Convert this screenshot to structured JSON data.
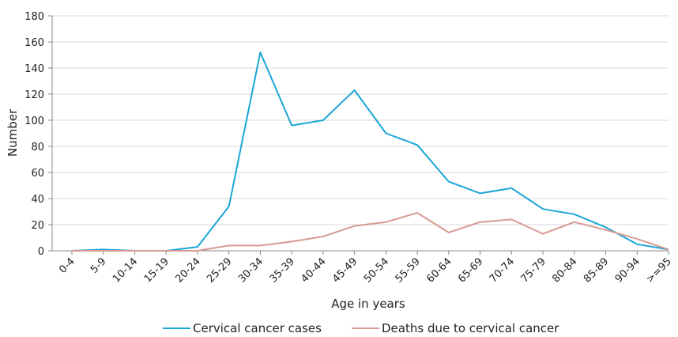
{
  "chart_data": {
    "type": "line",
    "xlabel": "Age in years",
    "ylabel": "Number",
    "ylim": [
      0,
      180
    ],
    "yticks": [
      0,
      20,
      40,
      60,
      80,
      100,
      120,
      140,
      160,
      180
    ],
    "grid": "horizontal",
    "legend_position": "bottom",
    "categories": [
      "0-4",
      "5-9",
      "10-14",
      "15-19",
      "20-24",
      "25-29",
      "30-34",
      "35-39",
      "40-44",
      "45-49",
      "50-54",
      "55-59",
      "60-64",
      "65-69",
      "70-74",
      "75-79",
      "80-84",
      "85-89",
      "90-94",
      ">=95"
    ],
    "series": [
      {
        "name": "Cervical cancer cases",
        "color": "#1ba6d6",
        "values": [
          0,
          1,
          0,
          0,
          3,
          34,
          152,
          96,
          100,
          123,
          90,
          81,
          53,
          44,
          48,
          32,
          28,
          18,
          5,
          1
        ]
      },
      {
        "name": "Deaths due to cervical cancer",
        "color": "#d79a92",
        "values": [
          0,
          0,
          0,
          0,
          0,
          4,
          4,
          7,
          11,
          19,
          22,
          29,
          14,
          22,
          24,
          13,
          22,
          16,
          9,
          1
        ]
      }
    ]
  }
}
